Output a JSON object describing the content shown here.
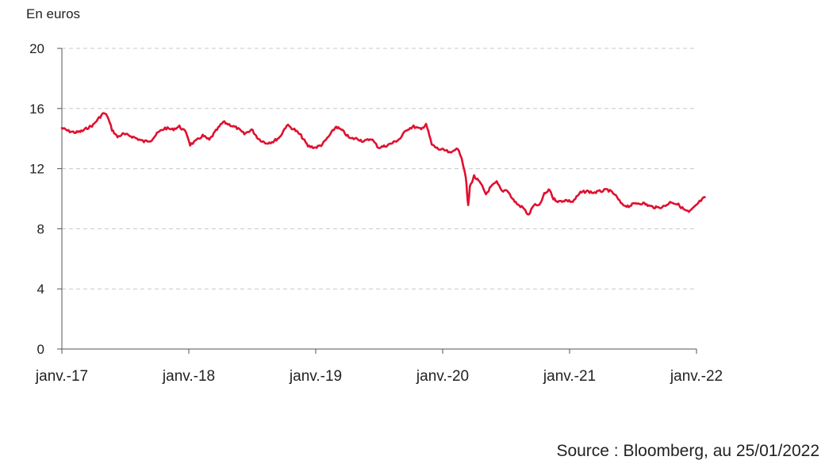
{
  "chart_data": {
    "type": "line",
    "unit_label": "En euros",
    "source": "Source : Bloomberg, au 25/01/2022",
    "xlabel": "",
    "ylabel": "",
    "ylim": [
      0,
      20
    ],
    "yticks": [
      "0",
      "4",
      "8",
      "12",
      "16",
      "20"
    ],
    "xlim": [
      "2017-01-01",
      "2022-01-01"
    ],
    "xticks": [
      "janv.-17",
      "janv.-18",
      "janv.-19",
      "janv.-20",
      "janv.-21",
      "janv.-22"
    ],
    "grid": "horizontal dashed",
    "line_color": "#e0102f",
    "series": [
      {
        "x": [
          "2017-01-01",
          "2017-01-20",
          "2017-02-10",
          "2017-03-01",
          "2017-03-15",
          "2017-04-01",
          "2017-04-15",
          "2017-05-01",
          "2017-05-12",
          "2017-05-25",
          "2017-06-10",
          "2017-06-25",
          "2017-07-15",
          "2017-08-05",
          "2017-08-25",
          "2017-09-15",
          "2017-10-05",
          "2017-10-25",
          "2017-11-15",
          "2017-12-05",
          "2017-12-25",
          "2018-01-05",
          "2018-01-20",
          "2018-02-10",
          "2018-03-01",
          "2018-03-20",
          "2018-04-10",
          "2018-05-01",
          "2018-05-20",
          "2018-06-10",
          "2018-07-01",
          "2018-07-20",
          "2018-08-10",
          "2018-09-01",
          "2018-09-20",
          "2018-10-10",
          "2018-11-01",
          "2018-11-20",
          "2018-12-10",
          "2019-01-01",
          "2019-01-20",
          "2019-02-10",
          "2019-03-01",
          "2019-03-20",
          "2019-04-10",
          "2019-05-01",
          "2019-05-20",
          "2019-06-10",
          "2019-07-01",
          "2019-07-20",
          "2019-08-10",
          "2019-09-01",
          "2019-09-20",
          "2019-10-10",
          "2019-11-01",
          "2019-11-15",
          "2019-12-01",
          "2019-12-20",
          "2020-01-10",
          "2020-01-25",
          "2020-02-10",
          "2020-02-25",
          "2020-03-01",
          "2020-03-08",
          "2020-03-12",
          "2020-03-15",
          "2020-03-20",
          "2020-04-01",
          "2020-04-20",
          "2020-05-05",
          "2020-05-20",
          "2020-06-05",
          "2020-06-20",
          "2020-07-05",
          "2020-07-20",
          "2020-08-05",
          "2020-08-20",
          "2020-09-05",
          "2020-09-20",
          "2020-10-05",
          "2020-10-20",
          "2020-11-05",
          "2020-11-15",
          "2020-12-01",
          "2020-12-20",
          "2021-01-10",
          "2021-02-01",
          "2021-02-20",
          "2021-03-10",
          "2021-04-01",
          "2021-04-20",
          "2021-05-10",
          "2021-06-01",
          "2021-06-20",
          "2021-07-10",
          "2021-08-01",
          "2021-08-20",
          "2021-09-10",
          "2021-10-01",
          "2021-10-20",
          "2021-11-10",
          "2021-11-25",
          "2021-12-10",
          "2021-12-25",
          "2022-01-10",
          "2022-01-25"
        ],
        "y": [
          14.7,
          14.5,
          14.4,
          14.5,
          14.7,
          14.9,
          15.3,
          15.7,
          15.5,
          14.6,
          14.1,
          14.3,
          14.2,
          14.0,
          13.8,
          13.9,
          14.4,
          14.7,
          14.6,
          14.8,
          14.4,
          13.6,
          13.8,
          14.2,
          13.9,
          14.5,
          15.1,
          14.9,
          14.7,
          14.3,
          14.6,
          14.0,
          13.7,
          13.8,
          14.1,
          14.9,
          14.6,
          14.2,
          13.5,
          13.4,
          13.6,
          14.2,
          14.8,
          14.5,
          14.0,
          14.0,
          13.8,
          14.0,
          13.4,
          13.5,
          13.7,
          14.0,
          14.6,
          14.8,
          14.6,
          15.0,
          13.6,
          13.3,
          13.2,
          13.0,
          13.4,
          12.8,
          12.2,
          11.5,
          10.3,
          9.5,
          10.8,
          11.5,
          11.0,
          10.3,
          10.8,
          11.1,
          10.5,
          10.6,
          10.0,
          9.6,
          9.4,
          8.9,
          9.6,
          9.5,
          10.3,
          10.6,
          10.0,
          9.8,
          9.9,
          9.8,
          10.4,
          10.5,
          10.4,
          10.5,
          10.6,
          10.3,
          9.6,
          9.5,
          9.7,
          9.7,
          9.5,
          9.4,
          9.5,
          9.8,
          9.6,
          9.3,
          9.1,
          9.4,
          9.8,
          10.1
        ]
      }
    ]
  }
}
